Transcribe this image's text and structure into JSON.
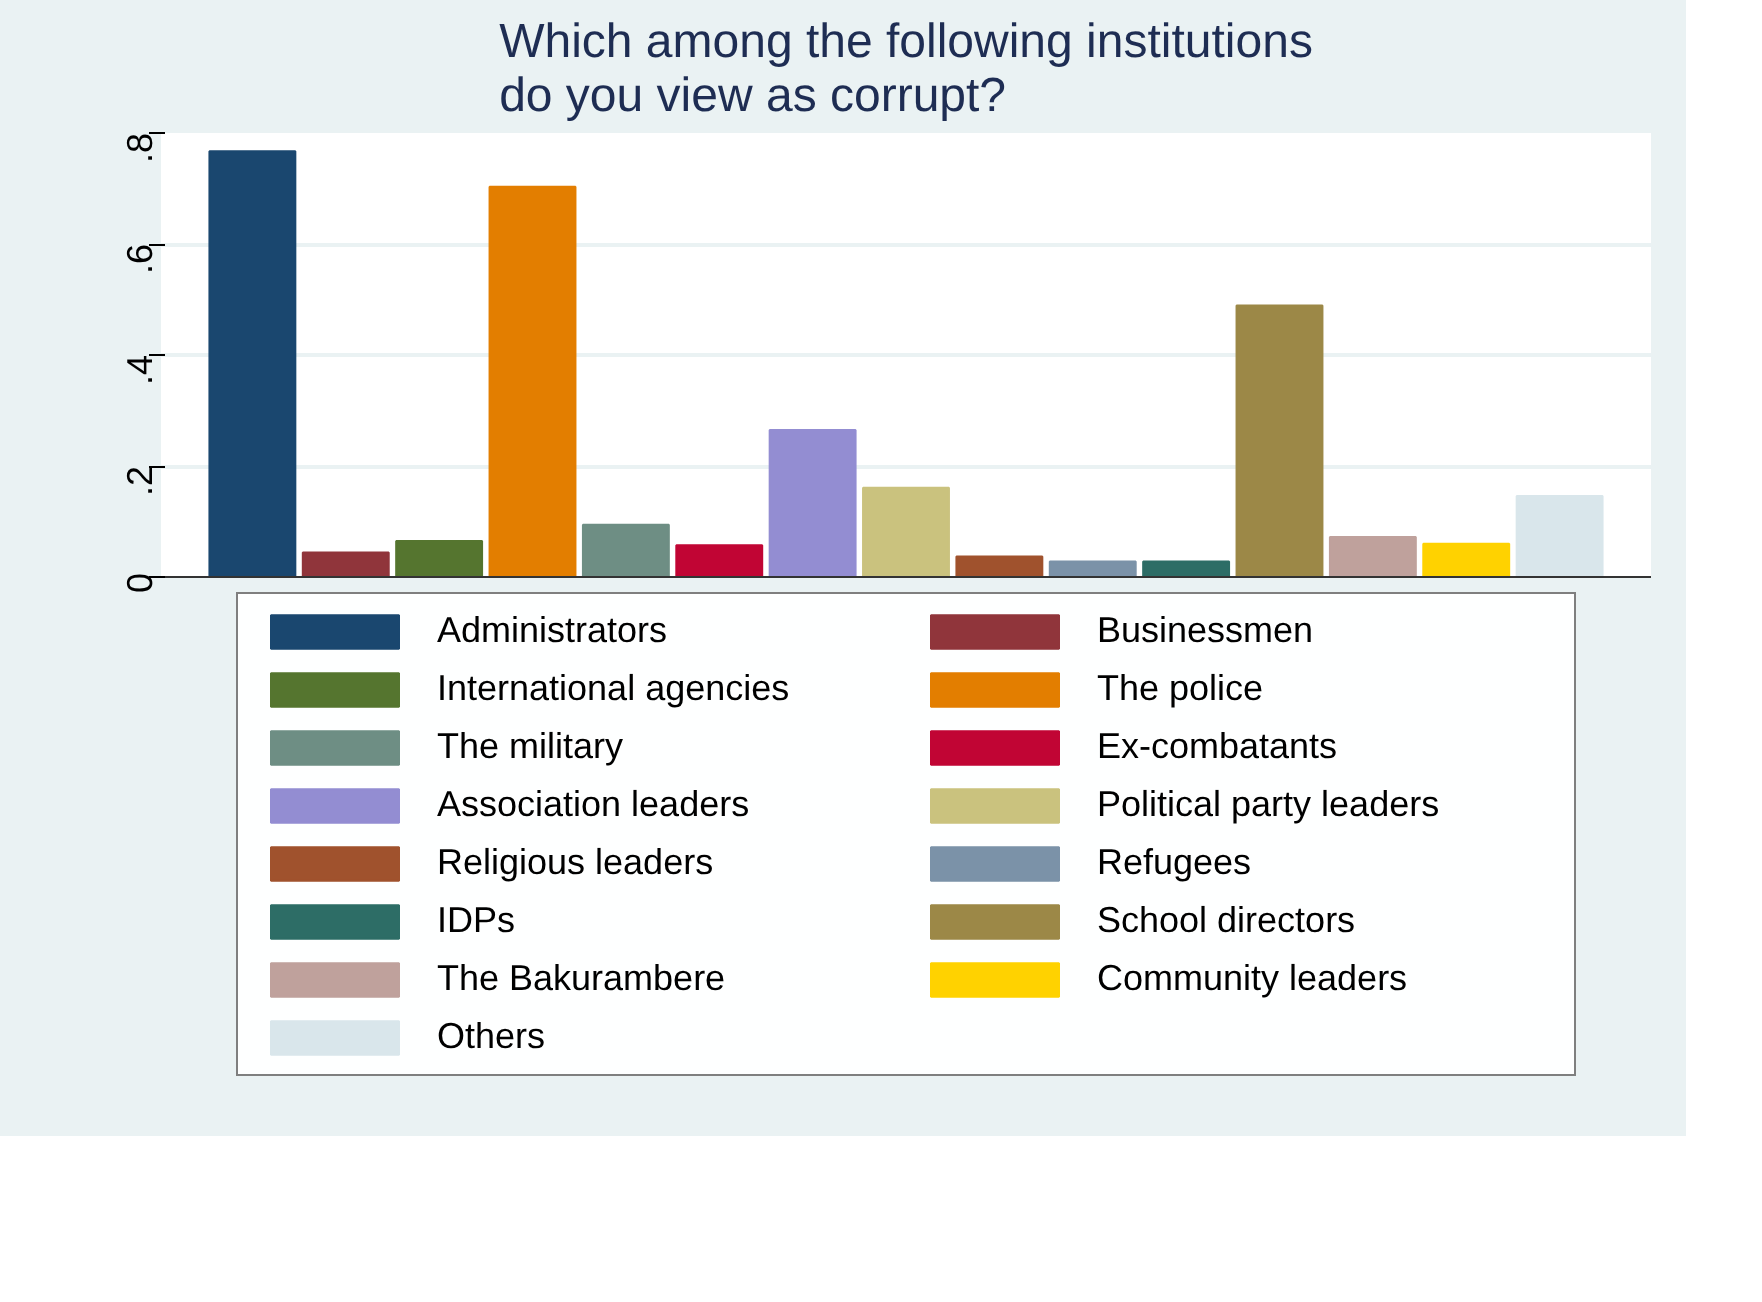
{
  "chart_data": {
    "type": "bar",
    "title": "Which among the following institutions\ndo you view as corrupt?",
    "categories": [
      null
    ],
    "series": [
      {
        "name": "Administrators",
        "color": "#1a476f",
        "values": [
          0.767
        ]
      },
      {
        "name": "Businessmen",
        "color": "#90353b",
        "values": [
          0.044
        ]
      },
      {
        "name": "International agencies",
        "color": "#55752f",
        "values": [
          0.065
        ]
      },
      {
        "name": "The police",
        "color": "#e37e00",
        "values": [
          0.703
        ]
      },
      {
        "name": "The military",
        "color": "#6e8e84",
        "values": [
          0.094
        ]
      },
      {
        "name": "Ex-combatants",
        "color": "#c10534",
        "values": [
          0.057
        ]
      },
      {
        "name": "Association leaders",
        "color": "#938dd2",
        "values": [
          0.265
        ]
      },
      {
        "name": "Political party leaders",
        "color": "#cac27e",
        "values": [
          0.161
        ]
      },
      {
        "name": "Religious leaders",
        "color": "#a0522d",
        "values": [
          0.037
        ]
      },
      {
        "name": "Refugees",
        "color": "#7b92a8",
        "values": [
          0.028
        ]
      },
      {
        "name": "IDPs",
        "color": "#2d6d66",
        "values": [
          0.028
        ]
      },
      {
        "name": "School directors",
        "color": "#9c8847",
        "values": [
          0.489
        ]
      },
      {
        "name": "The Bakurambere",
        "color": "#bfa19c",
        "values": [
          0.072
        ]
      },
      {
        "name": "Community leaders",
        "color": "#ffd200",
        "values": [
          0.06
        ]
      },
      {
        "name": "Others",
        "color": "#d9e6eb",
        "values": [
          0.146
        ]
      }
    ],
    "ylim": [
      0,
      0.8
    ],
    "yticks": [
      0,
      {
        "value": 0.2,
        "label": ".2"
      },
      {
        "value": 0.4,
        "label": ".4"
      },
      {
        "value": 0.6,
        "label": ".6"
      },
      {
        "value": 0.8,
        "label": ".8"
      }
    ],
    "grid": "y",
    "legend": "bottom"
  }
}
